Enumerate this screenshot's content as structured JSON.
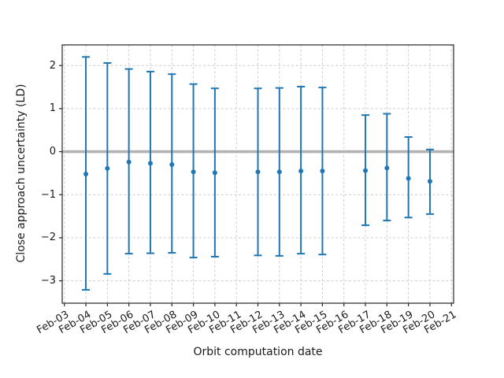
{
  "chart_data": {
    "type": "scatter",
    "subtype": "errorbar",
    "title": "",
    "xlabel": "Orbit computation date",
    "ylabel": "Close approach uncertainty (LD)",
    "x_tick_labels": [
      "Feb-03",
      "Feb-04",
      "Feb-05",
      "Feb-06",
      "Feb-07",
      "Feb-08",
      "Feb-09",
      "Feb-10",
      "Feb-11",
      "Feb-12",
      "Feb-13",
      "Feb-14",
      "Feb-15",
      "Feb-16",
      "Feb-17",
      "Feb-18",
      "Feb-19",
      "Feb-20",
      "Feb-21"
    ],
    "y_tick_values": [
      2,
      1,
      0,
      -1,
      -2,
      -3
    ],
    "y_tick_labels": [
      "2",
      "1",
      "0",
      "−1",
      "−2",
      "−3"
    ],
    "xlim_index": [
      -0.1,
      18.1
    ],
    "ylim": [
      -3.52,
      2.48
    ],
    "grid": {
      "visible": true,
      "style": "dashed",
      "color": "#cdcdcd"
    },
    "zero_line": {
      "value": 0,
      "color": "#b3b3b3"
    },
    "colors": {
      "series": "#1f77b4",
      "spine": "#262626",
      "tick": "#262626",
      "text": "#1a1a1a",
      "background": "#ffffff"
    },
    "legend": {
      "visible": false
    },
    "series": [
      {
        "name": "close-approach-uncertainty",
        "color": "#1f77b4",
        "points": [
          {
            "date": "Feb-04",
            "x_index": 1,
            "center": -0.52,
            "upper": 2.2,
            "lower": -3.21
          },
          {
            "date": "Feb-05",
            "x_index": 2,
            "center": -0.39,
            "upper": 2.06,
            "lower": -2.84
          },
          {
            "date": "Feb-06",
            "x_index": 3,
            "center": -0.24,
            "upper": 1.92,
            "lower": -2.37
          },
          {
            "date": "Feb-07",
            "x_index": 4,
            "center": -0.27,
            "upper": 1.86,
            "lower": -2.36
          },
          {
            "date": "Feb-08",
            "x_index": 5,
            "center": -0.3,
            "upper": 1.8,
            "lower": -2.35
          },
          {
            "date": "Feb-09",
            "x_index": 6,
            "center": -0.47,
            "upper": 1.57,
            "lower": -2.46
          },
          {
            "date": "Feb-10",
            "x_index": 7,
            "center": -0.49,
            "upper": 1.47,
            "lower": -2.44
          },
          {
            "date": "Feb-12",
            "x_index": 9,
            "center": -0.47,
            "upper": 1.47,
            "lower": -2.41
          },
          {
            "date": "Feb-13",
            "x_index": 10,
            "center": -0.47,
            "upper": 1.48,
            "lower": -2.42
          },
          {
            "date": "Feb-14",
            "x_index": 11,
            "center": -0.45,
            "upper": 1.51,
            "lower": -2.37
          },
          {
            "date": "Feb-15",
            "x_index": 12,
            "center": -0.45,
            "upper": 1.49,
            "lower": -2.39
          },
          {
            "date": "Feb-17",
            "x_index": 14,
            "center": -0.44,
            "upper": 0.85,
            "lower": -1.71
          },
          {
            "date": "Feb-18",
            "x_index": 15,
            "center": -0.38,
            "upper": 0.88,
            "lower": -1.6
          },
          {
            "date": "Feb-19",
            "x_index": 16,
            "center": -0.62,
            "upper": 0.34,
            "lower": -1.53
          },
          {
            "date": "Feb-20",
            "x_index": 17,
            "center": -0.69,
            "upper": 0.05,
            "lower": -1.45
          }
        ]
      }
    ]
  }
}
